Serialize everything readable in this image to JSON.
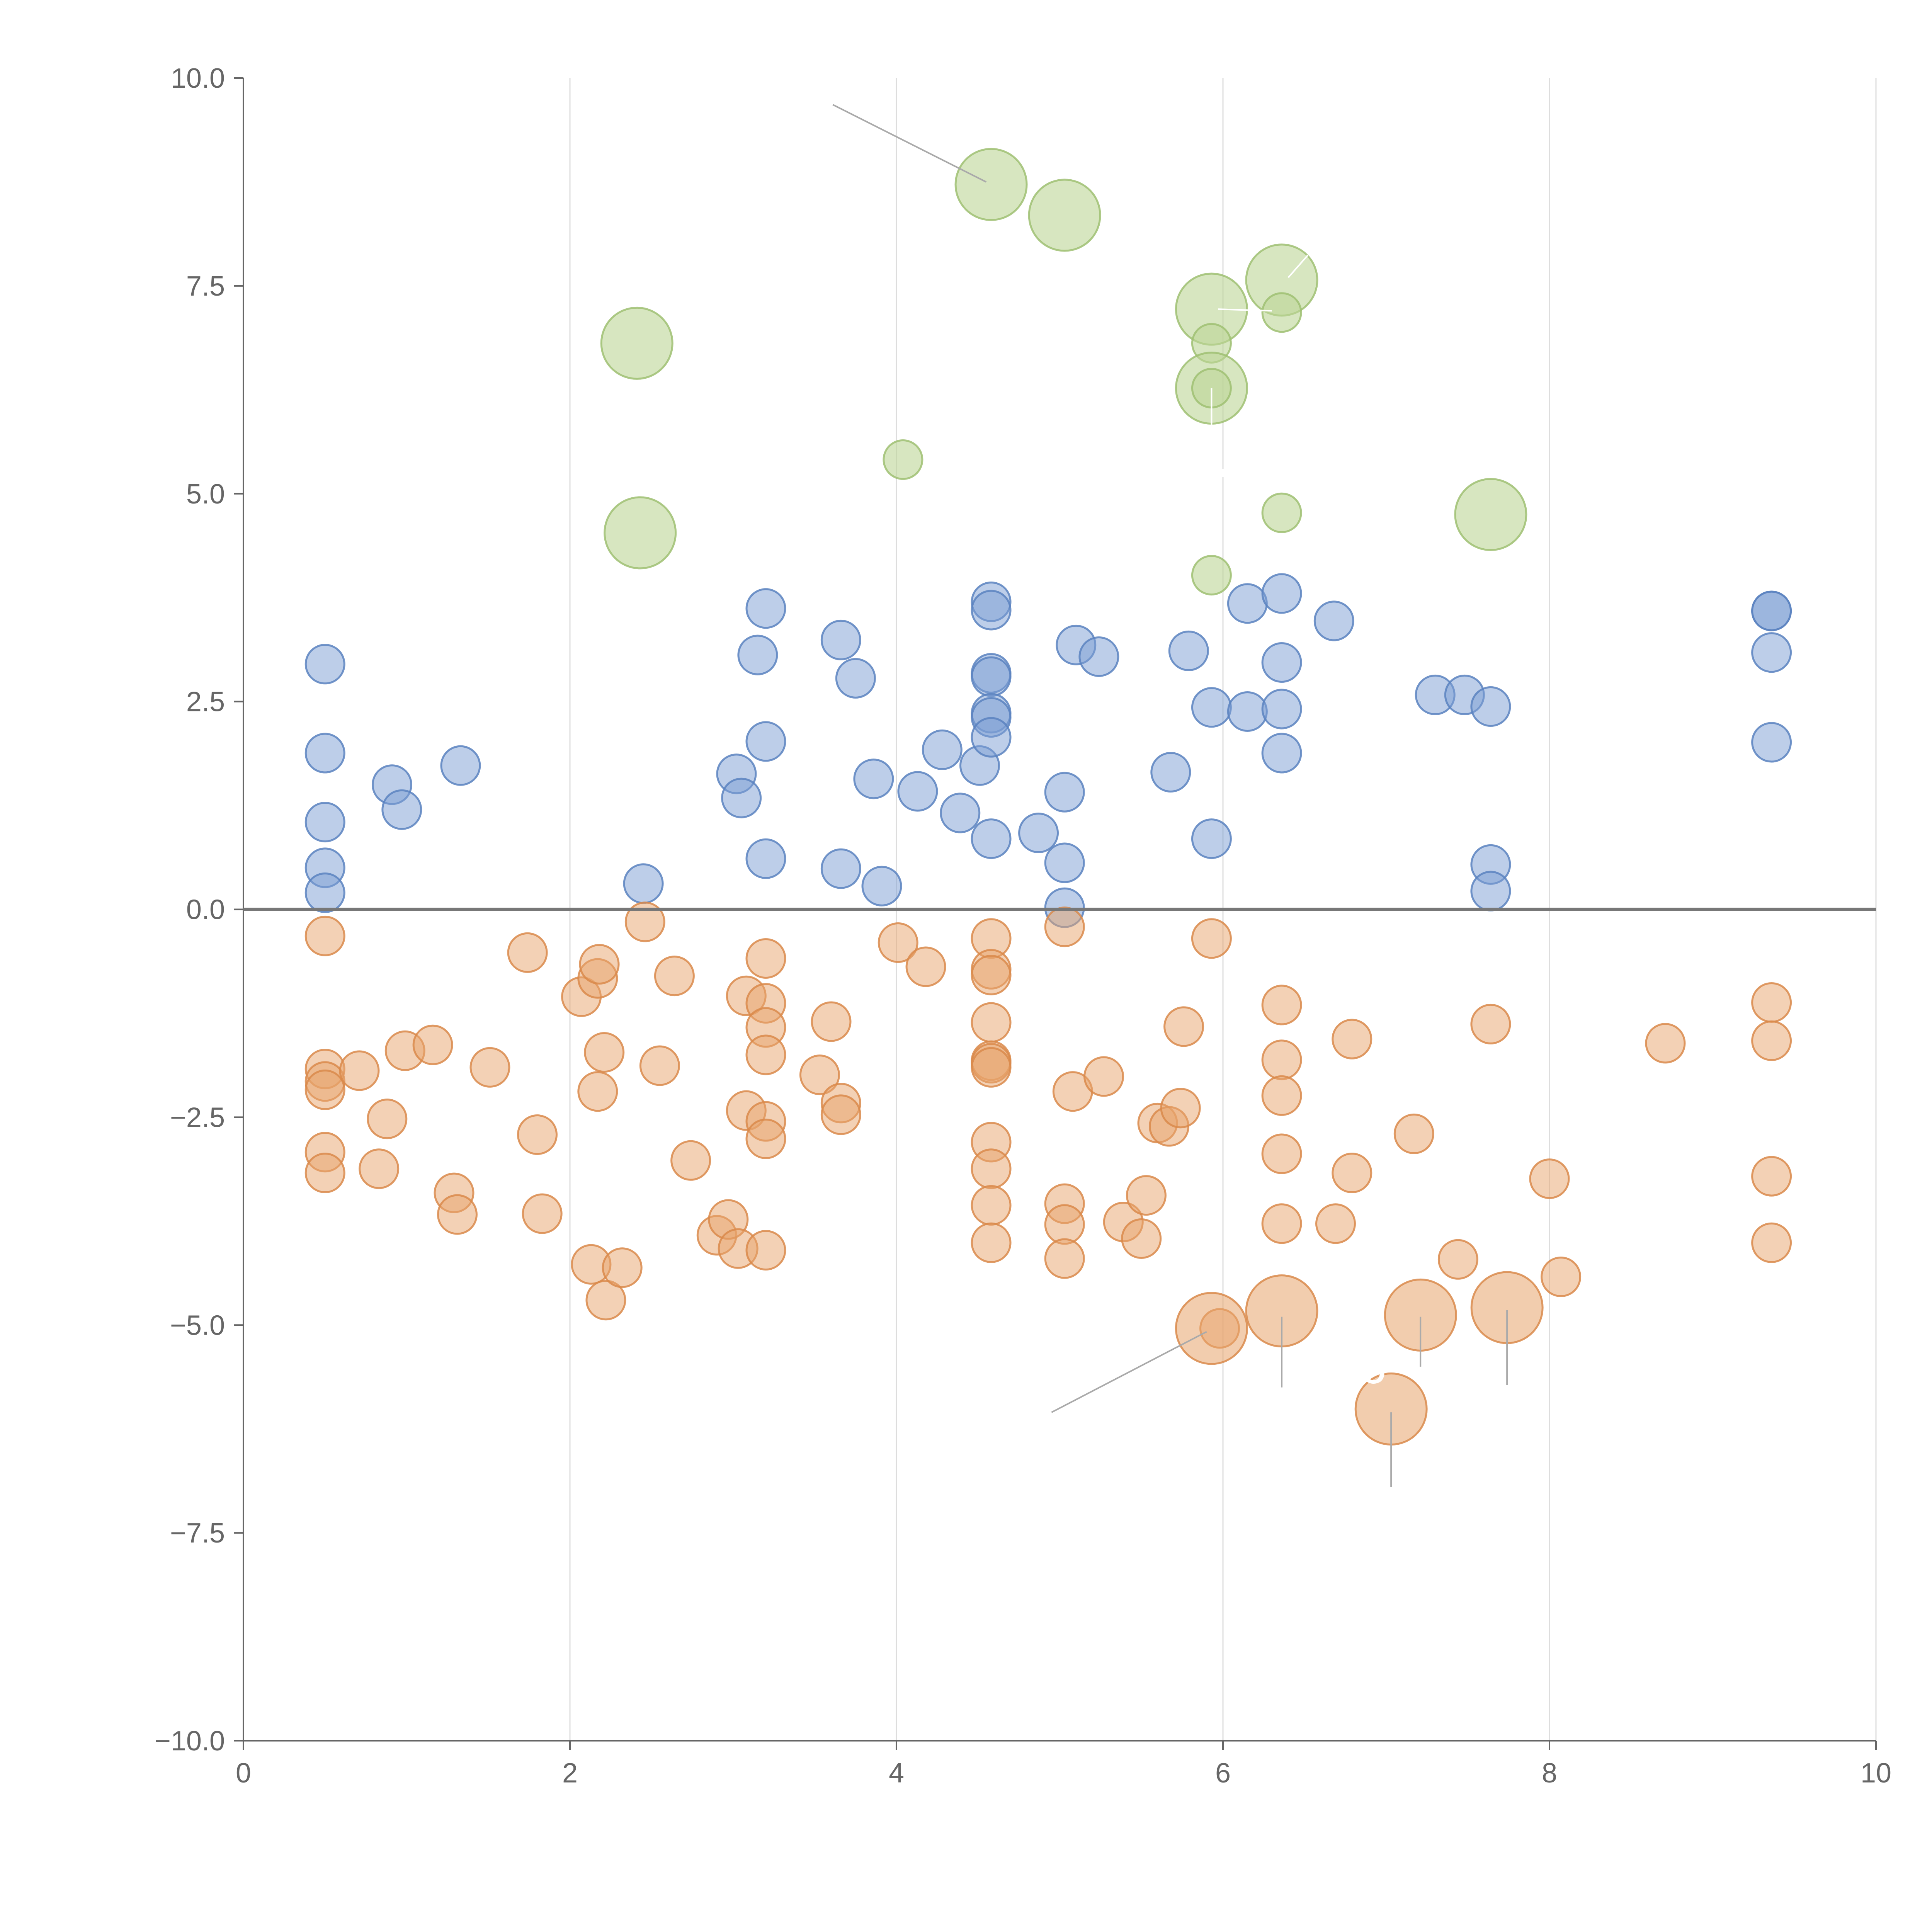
{
  "colors": {
    "positive": "#7b9ed4",
    "negative": "#e8a46b",
    "highlight_positive": "#bcd596",
    "positive_stroke": "#5b82bf",
    "negative_stroke": "#d98a4b",
    "highlight_stroke": "#9fbf72"
  },
  "chart_data": {
    "type": "scatter",
    "title": "",
    "xlabel": "",
    "ylabel": "",
    "xlim": [
      0,
      10
    ],
    "ylim": [
      -10,
      10
    ],
    "grid": "vertical",
    "x_ticks": [
      0,
      2,
      4,
      6,
      8,
      10
    ],
    "x_tick_labels": [
      "0",
      "2",
      "4",
      "6",
      "8",
      "10"
    ],
    "y_ticks": [
      10,
      7.5,
      5,
      2.5,
      0,
      -2.5,
      -5,
      -7.5,
      -10
    ],
    "y_tick_labels": [
      "10.0",
      "7.5",
      "5.0",
      "2.5",
      "0.0",
      "−2.5",
      "−5.0",
      "−7.5",
      "−10.0"
    ],
    "reference_line_y": 0,
    "series": [
      {
        "name": "highlight-positive",
        "color": "#bcd596",
        "points": [
          [
            4.58,
            8.72,
            1.0
          ],
          [
            5.03,
            8.35,
            1.0
          ],
          [
            6.36,
            7.57,
            1.0
          ],
          [
            5.93,
            7.22,
            1.0
          ],
          [
            6.36,
            7.18,
            0.45
          ],
          [
            2.41,
            6.81,
            1.0
          ],
          [
            5.93,
            6.81,
            0.45
          ],
          [
            5.93,
            6.27,
            1.0
          ],
          [
            5.93,
            6.27,
            0.45
          ],
          [
            4.04,
            5.41,
            0.45
          ],
          [
            6.36,
            4.77,
            0.45
          ],
          [
            7.64,
            4.75,
            1.0
          ],
          [
            2.43,
            4.53,
            1.0
          ],
          [
            5.93,
            4.02,
            0.45
          ]
        ]
      },
      {
        "name": "positive",
        "color": "#7b9ed4",
        "points": [
          [
            0.5,
            2.95
          ],
          [
            0.5,
            1.88
          ],
          [
            0.5,
            1.05
          ],
          [
            0.5,
            0.5
          ],
          [
            0.5,
            0.2
          ],
          [
            0.91,
            1.5
          ],
          [
            0.97,
            1.2
          ],
          [
            1.33,
            1.73
          ],
          [
            2.45,
            0.31
          ],
          [
            3.02,
            1.63
          ],
          [
            3.05,
            1.34
          ],
          [
            3.15,
            3.06
          ],
          [
            3.2,
            3.62
          ],
          [
            3.2,
            2.02
          ],
          [
            3.2,
            0.61
          ],
          [
            3.66,
            3.24
          ],
          [
            3.66,
            0.49
          ],
          [
            3.75,
            2.78
          ],
          [
            3.86,
            1.57
          ],
          [
            3.91,
            0.28
          ],
          [
            4.13,
            1.42
          ],
          [
            4.28,
            1.92
          ],
          [
            4.39,
            1.16
          ],
          [
            4.51,
            1.73
          ],
          [
            4.58,
            3.7
          ],
          [
            4.58,
            3.6
          ],
          [
            4.58,
            2.84
          ],
          [
            4.58,
            2.8
          ],
          [
            4.58,
            2.36
          ],
          [
            4.58,
            2.31
          ],
          [
            4.58,
            2.07
          ],
          [
            4.58,
            0.85
          ],
          [
            4.87,
            0.92
          ],
          [
            5.03,
            1.41
          ],
          [
            5.03,
            0.56
          ],
          [
            5.03,
            0.02
          ],
          [
            5.1,
            3.18
          ],
          [
            5.24,
            3.04
          ],
          [
            5.68,
            1.65
          ],
          [
            5.79,
            3.11
          ],
          [
            5.93,
            2.43
          ],
          [
            5.93,
            0.85
          ],
          [
            6.15,
            3.68
          ],
          [
            6.15,
            2.38
          ],
          [
            6.36,
            3.8
          ],
          [
            6.36,
            2.97
          ],
          [
            6.36,
            2.41
          ],
          [
            6.36,
            1.88
          ],
          [
            6.68,
            3.47
          ],
          [
            7.3,
            2.58
          ],
          [
            7.48,
            2.58
          ],
          [
            7.64,
            2.44
          ],
          [
            7.64,
            0.54
          ],
          [
            7.64,
            0.22
          ],
          [
            9.36,
            3.59
          ],
          [
            9.36,
            3.59
          ],
          [
            9.36,
            3.09
          ],
          [
            9.36,
            2.01
          ]
        ]
      },
      {
        "name": "negative",
        "color": "#e8a46b",
        "points": [
          [
            0.5,
            -0.32
          ],
          [
            0.5,
            -1.92
          ],
          [
            0.5,
            -2.07
          ],
          [
            0.5,
            -2.17
          ],
          [
            0.5,
            -2.92
          ],
          [
            0.5,
            -3.17
          ],
          [
            0.71,
            -1.94
          ],
          [
            0.83,
            -3.12
          ],
          [
            0.88,
            -2.52
          ],
          [
            0.99,
            -1.7
          ],
          [
            1.16,
            -1.63
          ],
          [
            1.29,
            -3.41
          ],
          [
            1.31,
            -3.67
          ],
          [
            1.51,
            -1.9
          ],
          [
            1.74,
            -0.52
          ],
          [
            1.8,
            -2.71
          ],
          [
            1.83,
            -3.66
          ],
          [
            2.07,
            -1.05
          ],
          [
            2.13,
            -4.27
          ],
          [
            2.17,
            -0.83
          ],
          [
            2.17,
            -2.19
          ],
          [
            2.18,
            -0.66
          ],
          [
            2.21,
            -1.72
          ],
          [
            2.22,
            -4.7
          ],
          [
            2.32,
            -4.31
          ],
          [
            2.46,
            -0.15
          ],
          [
            2.55,
            -1.88
          ],
          [
            2.64,
            -0.8
          ],
          [
            2.74,
            -3.02
          ],
          [
            2.9,
            -3.92
          ],
          [
            2.97,
            -3.73
          ],
          [
            3.03,
            -4.08
          ],
          [
            3.08,
            -1.04
          ],
          [
            3.08,
            -2.42
          ],
          [
            3.2,
            -0.59
          ],
          [
            3.2,
            -1.13
          ],
          [
            3.2,
            -1.42
          ],
          [
            3.2,
            -1.75
          ],
          [
            3.2,
            -2.55
          ],
          [
            3.2,
            -2.76
          ],
          [
            3.2,
            -4.1
          ],
          [
            3.53,
            -1.99
          ],
          [
            3.6,
            -1.35
          ],
          [
            3.66,
            -2.33
          ],
          [
            3.66,
            -2.47
          ],
          [
            4.01,
            -0.4
          ],
          [
            4.18,
            -0.69
          ],
          [
            4.58,
            -0.35
          ],
          [
            4.58,
            -0.72
          ],
          [
            4.58,
            -0.79
          ],
          [
            4.58,
            -1.36
          ],
          [
            4.58,
            -1.82
          ],
          [
            4.58,
            -1.85
          ],
          [
            4.58,
            -1.9
          ],
          [
            4.58,
            -2.8
          ],
          [
            4.58,
            -3.12
          ],
          [
            4.58,
            -3.56
          ],
          [
            4.58,
            -4.01
          ],
          [
            5.03,
            -0.21
          ],
          [
            5.03,
            -3.54
          ],
          [
            5.03,
            -3.79
          ],
          [
            5.03,
            -4.2
          ],
          [
            5.08,
            -2.19
          ],
          [
            5.27,
            -2.01
          ],
          [
            5.39,
            -3.76
          ],
          [
            5.5,
            -3.96
          ],
          [
            5.53,
            -3.44
          ],
          [
            5.6,
            -2.57
          ],
          [
            5.67,
            -2.61
          ],
          [
            5.74,
            -2.39
          ],
          [
            5.76,
            -1.41
          ],
          [
            5.93,
            -0.35
          ],
          [
            6.36,
            -1.15
          ],
          [
            6.36,
            -1.81
          ],
          [
            6.36,
            -2.24
          ],
          [
            6.36,
            -2.94
          ],
          [
            6.36,
            -3.78
          ],
          [
            6.69,
            -3.78
          ],
          [
            6.79,
            -1.56
          ],
          [
            6.79,
            -3.17
          ],
          [
            7.17,
            -2.7
          ],
          [
            7.44,
            -4.21
          ],
          [
            7.64,
            -1.38
          ],
          [
            8.0,
            -3.24
          ],
          [
            8.07,
            -4.42
          ],
          [
            8.71,
            -1.61
          ],
          [
            9.36,
            -1.12
          ],
          [
            9.36,
            -1.58
          ],
          [
            9.36,
            -3.21
          ],
          [
            9.36,
            -4.01
          ],
          [
            5.98,
            -5.04
          ]
        ]
      },
      {
        "name": "highlight-negative",
        "color": "#e8a46b",
        "points": [
          [
            5.93,
            -5.04,
            1.0
          ],
          [
            6.36,
            -4.83,
            1.0
          ],
          [
            7.21,
            -4.88,
            1.0
          ],
          [
            7.74,
            -4.79,
            1.0
          ],
          [
            7.03,
            -6.01,
            1.0
          ]
        ]
      }
    ],
    "annotations": [
      {
        "text": "NIO",
        "near": [
          7.1,
          -5.6
        ]
      }
    ]
  }
}
